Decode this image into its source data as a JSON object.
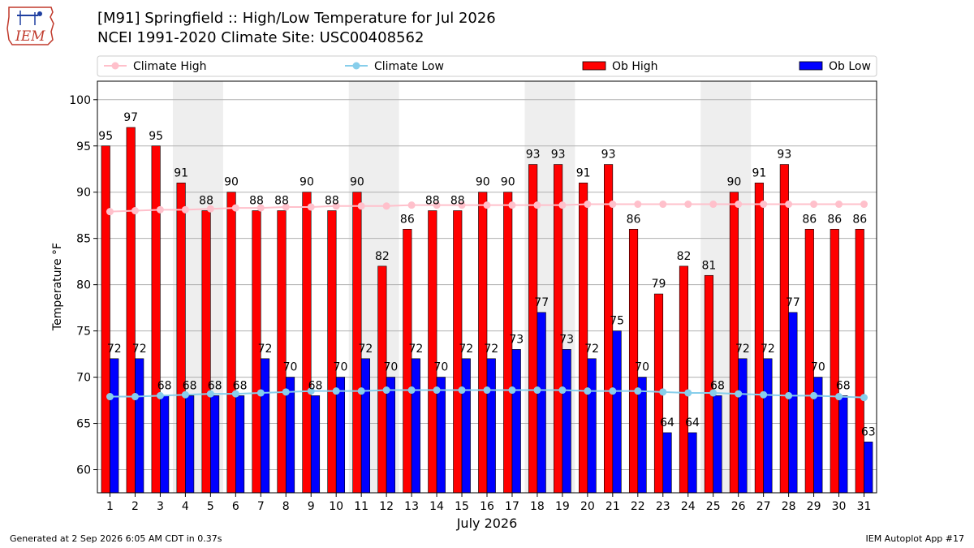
{
  "header": {
    "title_line1": "[M91] Springfield :: High/Low Temperature for Jul 2026",
    "title_line2": "NCEI 1991-2020 Climate Site: USC00408562",
    "logo_text": "IEM"
  },
  "footer": {
    "generated": "Generated at 2 Sep 2026 6:05 AM CDT in 0.37s",
    "app": "IEM Autoplot App #17"
  },
  "colors": {
    "ob_high": "#ff0000",
    "ob_low": "#0000ff",
    "climate_high": "#ffc0cb",
    "climate_low": "#87ceeb",
    "weekend_shade": "#eeeeee",
    "grid": "#b0b0b0"
  },
  "chart_data": {
    "type": "bar",
    "xlabel": "July 2026",
    "ylabel": "Temperature °F",
    "ylim": [
      57.5,
      102
    ],
    "yticks": [
      60,
      65,
      70,
      75,
      80,
      85,
      90,
      95,
      100
    ],
    "grid": true,
    "legend_position": "top",
    "categories": [
      "1",
      "2",
      "3",
      "4",
      "5",
      "6",
      "7",
      "8",
      "9",
      "10",
      "11",
      "12",
      "13",
      "14",
      "15",
      "16",
      "17",
      "18",
      "19",
      "20",
      "21",
      "22",
      "23",
      "24",
      "25",
      "26",
      "27",
      "28",
      "29",
      "30",
      "31"
    ],
    "shaded_days": [
      [
        4,
        5
      ],
      [
        11,
        12
      ],
      [
        18,
        19
      ],
      [
        25,
        26
      ]
    ],
    "series": [
      {
        "name": "Climate High",
        "kind": "line",
        "values": [
          87.9,
          88.0,
          88.1,
          88.1,
          88.2,
          88.3,
          88.3,
          88.4,
          88.4,
          88.5,
          88.5,
          88.5,
          88.6,
          88.6,
          88.6,
          88.6,
          88.6,
          88.6,
          88.6,
          88.7,
          88.7,
          88.7,
          88.7,
          88.7,
          88.7,
          88.7,
          88.7,
          88.7,
          88.7,
          88.7,
          88.7
        ]
      },
      {
        "name": "Climate Low",
        "kind": "line",
        "values": [
          67.9,
          67.9,
          68.0,
          68.1,
          68.2,
          68.2,
          68.3,
          68.4,
          68.5,
          68.5,
          68.5,
          68.6,
          68.6,
          68.6,
          68.6,
          68.6,
          68.6,
          68.6,
          68.6,
          68.5,
          68.5,
          68.5,
          68.4,
          68.3,
          68.3,
          68.2,
          68.1,
          68.0,
          68.0,
          67.9,
          67.8
        ]
      },
      {
        "name": "Ob High",
        "kind": "bar",
        "values": [
          95,
          97,
          95,
          91,
          88,
          90,
          88,
          88,
          90,
          88,
          90,
          82,
          86,
          88,
          88,
          90,
          90,
          93,
          93,
          91,
          93,
          86,
          79,
          82,
          81,
          90,
          91,
          93,
          86,
          86,
          86
        ]
      },
      {
        "name": "Ob Low",
        "kind": "bar",
        "values": [
          72,
          72,
          68,
          68,
          68,
          68,
          72,
          70,
          68,
          70,
          72,
          70,
          72,
          70,
          72,
          72,
          73,
          77,
          73,
          72,
          75,
          70,
          64,
          64,
          68,
          72,
          72,
          77,
          70,
          68,
          63
        ]
      }
    ]
  }
}
